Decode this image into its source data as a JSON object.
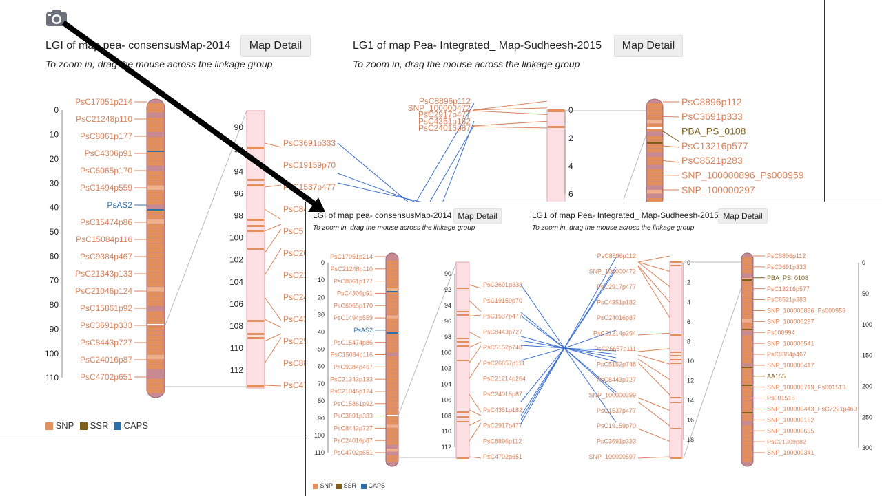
{
  "colors": {
    "snp": "#e0915f",
    "ssr": "#7d5f1a",
    "caps": "#2f6fa8",
    "chrom_fill": "#e38f5c",
    "chrom_pink": "#c88a92",
    "map_bg": "#fde0e3",
    "map_border": "#e4a0a8",
    "line_blue": "#3a6fcf",
    "line_gray": "#b8b8b8",
    "label": "#d9825a",
    "arrow": "#000000"
  },
  "camera_icon": "camera-icon",
  "back": {
    "title1": "LGI of map pea- consensusMap-2014",
    "btn1": "Map Detail",
    "hint1": "To zoom in, drag the mouse across the linkage group",
    "title2": "LG1 of map Pea- Integrated_ Map-Sudheesh-2015",
    "btn2": "Map Detail",
    "hint2": "To zoom in, drag the mouse across the linkage group",
    "axis1": [
      "0",
      "10",
      "20",
      "30",
      "40",
      "50",
      "60",
      "70",
      "80",
      "90",
      "100",
      "110"
    ],
    "axis2": [
      "90",
      "92",
      "94",
      "96",
      "98",
      "100",
      "102",
      "104",
      "106",
      "108",
      "110",
      "112"
    ],
    "axis3": [
      "0",
      "2",
      "4",
      "6"
    ],
    "labels1": [
      "PsC17051p214",
      "PsC21248p110",
      "PsC8061p177",
      "PsC4306p91",
      "PsC6065p170",
      "PsC1494p559",
      "PsAS2",
      "PsC15474p86",
      "PsC15084p116",
      "PsC9384p467",
      "PsC21343p133",
      "PsC21046p124",
      "PsC15861p92",
      "PsC3691p333",
      "PsC8443p727",
      "PsC24016p87",
      "PsC4702p651"
    ],
    "labels2": [
      "PsC3691p333",
      "PsC19159p70",
      "PsC1537p477",
      "PsC84",
      "PsC5",
      "PsC26",
      "PsC21",
      "PsC24",
      "PsC43",
      "PsC29",
      "PsC88",
      "PsC47"
    ],
    "labels3": [
      "PsC8896p112",
      "SNP_100000472",
      "PsC2917p477",
      "PsC4351p182",
      "PsC24016p87"
    ],
    "labels4": [
      "PsC8896p112",
      "PsC3691p333",
      "PBA_PS_0108",
      "PsC13216p577",
      "PsC8521p283",
      "SNP_100000896_Ps000959",
      "SNP_100000297"
    ],
    "legend": [
      {
        "name": "SNP"
      },
      {
        "name": "SSR"
      },
      {
        "name": "CAPS"
      }
    ]
  },
  "front": {
    "title1": "LGI of map pea- consensusMap-2014",
    "btn1": "Map Detail",
    "hint1": "To zoom in, drag the mouse across the linkage group",
    "title2": "LG1 of map Pea- Integrated_ Map-Sudheesh-2015",
    "btn2": "Map Detail",
    "hint2": "To zoom in, drag the mouse across the linkage group",
    "axis1": [
      "0",
      "10",
      "20",
      "30",
      "40",
      "50",
      "60",
      "70",
      "80",
      "90",
      "100",
      "110"
    ],
    "axis2": [
      "90",
      "92",
      "94",
      "96",
      "98",
      "100",
      "102",
      "104",
      "106",
      "108",
      "110",
      "112"
    ],
    "axis3": [
      "0",
      "2",
      "4",
      "6",
      "8",
      "10",
      "12",
      "14",
      "16",
      "18"
    ],
    "axis4": [
      "0",
      "50",
      "100",
      "150",
      "200",
      "250",
      "300"
    ],
    "labels1": [
      "PsC17051p214",
      "PsC21248p110",
      "PsC8061p177",
      "PsC4306p91",
      "PsC6065p170",
      "PsC1494p559",
      "PsAS2",
      "PsC15474p86",
      "PsC15084p116",
      "PsC9384p467",
      "PsC21343p133",
      "PsC21046p124",
      "PsC15861p92",
      "PsC3691p333",
      "PsC8443p727",
      "PsC24016p87",
      "PsC4702p651"
    ],
    "labels2": [
      "PsC3691p333",
      "PsC19159p70",
      "PsC1537p477",
      "PsC8443p727",
      "PsC5152p748",
      "PsC26657p111",
      "PsC21214p264",
      "PsC24016p87",
      "PsC4351p182",
      "PsC2917p477",
      "PsC8896p112",
      "PsC4702p651"
    ],
    "labels3": [
      "PsC8896p112",
      "SNP_100000472",
      "PsC2917p477",
      "PsC4351p182",
      "PsC24016p87",
      "PsC21214p264",
      "PsC26657p111",
      "PsC5152p748",
      "PsC8443p727",
      "SNP_100000399",
      "PsC1537p477",
      "PsC19159p70",
      "PsC3691p333",
      "SNP_100000597"
    ],
    "labels4": [
      "PsC8896p112",
      "PsC3691p333",
      "PBA_PS_0108",
      "PsC13216p577",
      "PsC8521p283",
      "SNP_100000896_Ps000959",
      "SNP_100000297",
      "Ps000994",
      "SNP_100000541",
      "PsC9384p467",
      "SNP_100000417",
      "AA155",
      "SNP_100000719_Ps001513",
      "Ps001516",
      "SNP_100000443_PsC7221p460",
      "SNP_100000162",
      "SNP_100000635",
      "PsC21309p82",
      "SNP_100000341"
    ],
    "legend": [
      {
        "name": "SNP"
      },
      {
        "name": "SSR"
      },
      {
        "name": "CAPS"
      }
    ]
  }
}
